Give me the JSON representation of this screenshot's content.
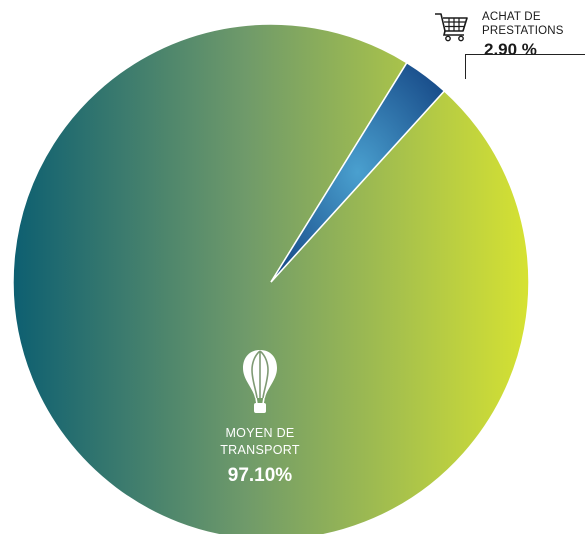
{
  "chart_data": {
    "type": "pie",
    "title": "",
    "slices": [
      {
        "label": "MOYEN DE\nTRANSPORT",
        "value_text": "97.10%",
        "value": 97.1,
        "color_start": "#0d5f71",
        "color_end": "#d6e232",
        "icon": "hot-air-balloon-icon"
      },
      {
        "label": "ACHAT DE\nPRESTATIONS",
        "value_text": "2.90 %",
        "value": 2.9,
        "color_start": "#1a4f8c",
        "color_end": "#4aa0cf",
        "icon": "shopping-cart-icon"
      }
    ]
  }
}
